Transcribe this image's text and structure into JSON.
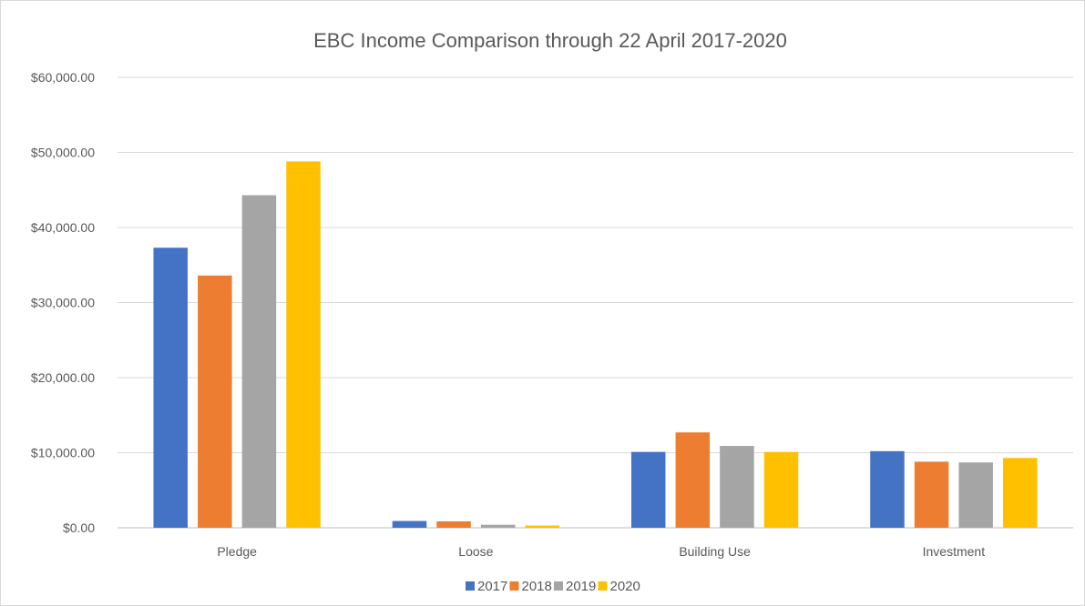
{
  "chart_data": {
    "type": "bar",
    "title": "EBC Income Comparison through 22 April 2017-2020",
    "xlabel": "",
    "ylabel": "",
    "categories": [
      "Pledge",
      "Loose",
      "Building Use",
      "Investment"
    ],
    "series": [
      {
        "name": "2017",
        "color": "#4472C4",
        "values": [
          37300,
          900,
          10100,
          10200
        ]
      },
      {
        "name": "2018",
        "color": "#ED7D31",
        "values": [
          33600,
          850,
          12700,
          8800
        ]
      },
      {
        "name": "2019",
        "color": "#A5A5A5",
        "values": [
          44300,
          400,
          10900,
          8700
        ]
      },
      {
        "name": "2020",
        "color": "#FFC000",
        "values": [
          48800,
          300,
          10100,
          9300
        ]
      }
    ],
    "ylim": [
      0,
      60000
    ],
    "yticks": [
      0,
      10000,
      20000,
      30000,
      40000,
      50000,
      60000
    ],
    "ytick_labels": [
      "$0.00",
      "$10,000.00",
      "$20,000.00",
      "$30,000.00",
      "$40,000.00",
      "$50,000.00",
      "$60,000.00"
    ],
    "grid": true,
    "legend_position": "bottom"
  }
}
